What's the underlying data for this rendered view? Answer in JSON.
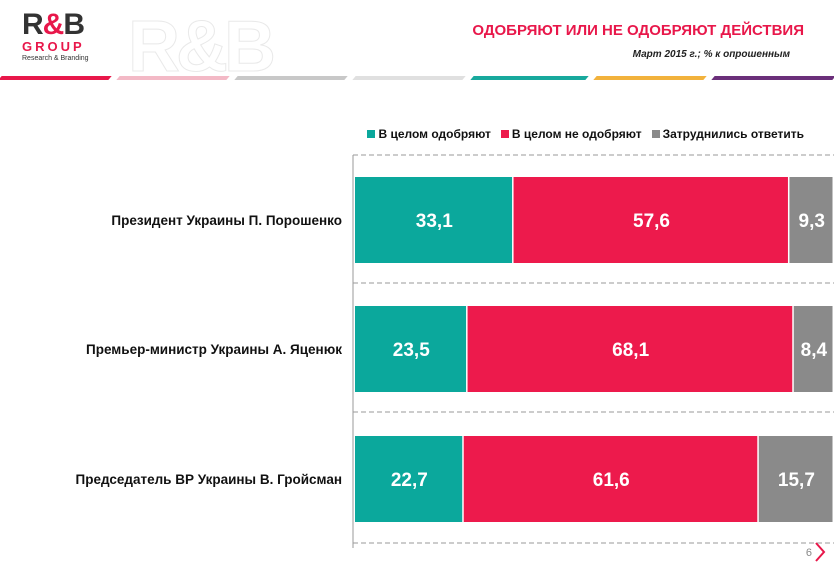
{
  "brand": {
    "logo_main": "R&B",
    "logo_sub1": "GROUP",
    "logo_sub2": "Research & Branding"
  },
  "header": {
    "title": "ОДОБРЯЮТ ИЛИ НЕ ОДОБРЯЮТ ДЕЙСТВИЯ",
    "subtitle": "Март 2015  г.; % к опрошенным"
  },
  "colors": {
    "approve": "#0ba89c",
    "disapprove": "#ed1a4c",
    "undecided": "#8a8a8a",
    "accent": "#e8174a"
  },
  "page_number": "6",
  "chart_data": {
    "type": "bar",
    "orientation": "horizontal",
    "stacked": true,
    "categories": [
      "Президент Украины П. Порошенко",
      "Премьер-министр Украины А. Яценюк",
      "Председатель ВР Украины В. Гройсман"
    ],
    "series": [
      {
        "name": "В целом одобряют",
        "values": [
          33.1,
          23.5,
          22.7
        ],
        "labels": [
          "33,1",
          "23,5",
          "22,7"
        ]
      },
      {
        "name": "В целом не одобряют",
        "values": [
          57.6,
          68.1,
          61.6
        ],
        "labels": [
          "57,6",
          "68,1",
          "61,6"
        ]
      },
      {
        "name": "Затруднились ответить",
        "values": [
          9.3,
          8.4,
          15.7
        ],
        "labels": [
          "9,3",
          "8,4",
          "15,7"
        ]
      }
    ],
    "xlim": [
      0,
      100
    ],
    "legend_position": "top-right",
    "grid": "dashed separators between rows"
  }
}
